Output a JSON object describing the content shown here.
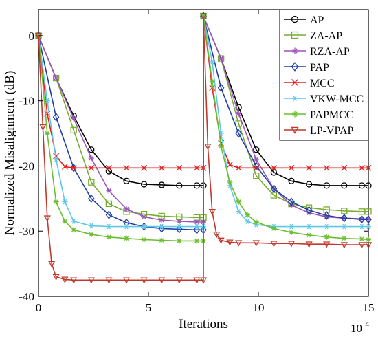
{
  "chart_data": {
    "type": "line",
    "title": "",
    "xlabel": "Iterations",
    "ylabel": "Normalized Misalignment (dB)",
    "x_exponent_label": "10",
    "x_exponent_power": "4",
    "xlim": [
      0,
      15
    ],
    "ylim": [
      -40,
      4
    ],
    "xticks": [
      0,
      5,
      10,
      15
    ],
    "xtick_labels": [
      "0",
      "5",
      "10",
      "15"
    ],
    "yticks": [
      0,
      -10,
      -20,
      -30,
      -40
    ],
    "ytick_labels": [
      "0",
      "-10",
      "-20",
      "-30",
      "-40"
    ],
    "grid": false,
    "legend_position": "top-right",
    "x_units_note": "",
    "series": [
      {
        "name": "AP",
        "color": "#000000",
        "marker": "circle",
        "x": [
          0,
          0.8,
          1.6,
          2.4,
          3.2,
          4.0,
          4.8,
          5.6,
          6.4,
          7.2,
          7.5,
          7.5,
          8.3,
          9.1,
          9.9,
          10.7,
          11.5,
          12.3,
          13.1,
          13.9,
          14.7,
          15
        ],
        "y": [
          0,
          -6.5,
          -12.3,
          -17.5,
          -20.8,
          -22.3,
          -22.8,
          -22.9,
          -23.0,
          -23.0,
          -23.0,
          3,
          -3.5,
          -11.0,
          -17.5,
          -21.0,
          -22.3,
          -22.8,
          -23.0,
          -23.0,
          -23.0,
          -23.0
        ]
      },
      {
        "name": "ZA-AP",
        "color": "#77ac30",
        "marker": "square",
        "x": [
          0,
          0.8,
          1.6,
          2.4,
          3.2,
          4.0,
          4.8,
          5.6,
          6.4,
          7.2,
          7.5,
          7.5,
          8.3,
          9.1,
          9.9,
          10.7,
          11.5,
          12.3,
          13.1,
          13.9,
          14.7,
          15
        ],
        "y": [
          0,
          -6.5,
          -14.5,
          -22.5,
          -25.8,
          -27.0,
          -27.4,
          -27.7,
          -27.8,
          -27.9,
          -27.9,
          3,
          -3.5,
          -13.5,
          -21.5,
          -24.5,
          -25.8,
          -26.4,
          -26.7,
          -26.9,
          -27.0,
          -27.0
        ]
      },
      {
        "name": "RZA-AP",
        "color": "#9b55b8",
        "marker": "star",
        "x": [
          0,
          0.8,
          1.6,
          2.4,
          3.2,
          4.0,
          4.8,
          5.6,
          6.4,
          7.2,
          7.5,
          7.5,
          8.3,
          9.1,
          9.9,
          10.7,
          11.5,
          12.3,
          13.1,
          13.9,
          14.7,
          15
        ],
        "y": [
          0,
          -6.5,
          -12.7,
          -18.8,
          -23.8,
          -26.6,
          -27.8,
          -28.3,
          -28.5,
          -28.6,
          -28.6,
          3,
          -3.5,
          -12.0,
          -19.0,
          -23.5,
          -26.0,
          -27.2,
          -27.8,
          -28.0,
          -28.1,
          -28.1
        ]
      },
      {
        "name": "PAP",
        "color": "#1f3fa6",
        "marker": "diamond",
        "x": [
          0,
          0.8,
          1.6,
          2.4,
          3.2,
          4.0,
          4.8,
          5.6,
          6.4,
          7.2,
          7.5,
          7.5,
          8.3,
          9.1,
          9.9,
          10.7,
          11.5,
          12.3,
          13.1,
          13.9,
          14.7,
          15
        ],
        "y": [
          0,
          -12.5,
          -20.3,
          -25.0,
          -27.5,
          -28.7,
          -29.3,
          -29.6,
          -29.7,
          -29.8,
          -29.8,
          3,
          -8.0,
          -15.0,
          -20.0,
          -23.5,
          -25.5,
          -26.8,
          -27.6,
          -28.0,
          -28.2,
          -28.2
        ]
      },
      {
        "name": "MCC",
        "color": "#e02020",
        "marker": "x",
        "x": [
          0,
          0.4,
          0.8,
          1.2,
          1.6,
          2.4,
          3.2,
          4.0,
          4.8,
          5.6,
          6.4,
          7.2,
          7.5,
          7.5,
          7.9,
          8.3,
          8.7,
          9.1,
          9.9,
          10.7,
          11.5,
          12.3,
          13.1,
          13.9,
          14.7,
          15
        ],
        "y": [
          0,
          -12,
          -18.5,
          -20.1,
          -20.3,
          -20.3,
          -20.3,
          -20.3,
          -20.3,
          -20.3,
          -20.3,
          -20.3,
          -20.3,
          3,
          -8,
          -16.5,
          -19.8,
          -20.3,
          -20.3,
          -20.3,
          -20.3,
          -20.3,
          -20.3,
          -20.3,
          -20.3,
          -20.3
        ]
      },
      {
        "name": "VKW-MCC",
        "color": "#5fc8e8",
        "marker": "star6",
        "x": [
          0,
          0.4,
          0.8,
          1.2,
          1.6,
          2.4,
          3.2,
          4.0,
          4.8,
          5.6,
          6.4,
          7.2,
          7.5,
          7.5,
          7.9,
          8.3,
          8.7,
          9.1,
          9.5,
          9.9,
          10.7,
          11.5,
          12.3,
          13.1,
          13.9,
          14.7,
          15
        ],
        "y": [
          0,
          -10,
          -19,
          -25.5,
          -28.5,
          -29.2,
          -29.3,
          -29.3,
          -29.3,
          -29.3,
          -29.3,
          -29.3,
          -29.3,
          3,
          -4,
          -15,
          -23,
          -27,
          -28.5,
          -29.0,
          -29.3,
          -29.3,
          -29.3,
          -29.3,
          -29.3,
          -29.3,
          -29.3
        ]
      },
      {
        "name": "PAPMCC",
        "color": "#6abf2f",
        "marker": "star",
        "x": [
          0,
          0.4,
          0.8,
          1.2,
          1.6,
          2.4,
          3.2,
          4.0,
          4.8,
          5.6,
          6.4,
          7.2,
          7.5,
          7.5,
          7.9,
          8.3,
          8.7,
          9.1,
          9.5,
          9.9,
          10.7,
          11.5,
          12.3,
          13.1,
          13.9,
          14.7,
          15
        ],
        "y": [
          0,
          -15,
          -25.5,
          -28.5,
          -29.8,
          -30.5,
          -30.9,
          -31.1,
          -31.3,
          -31.4,
          -31.5,
          -31.5,
          -31.5,
          3,
          -7,
          -17,
          -22.5,
          -25.5,
          -27.5,
          -28.6,
          -29.6,
          -30.2,
          -30.6,
          -30.9,
          -31.1,
          -31.2,
          -31.3
        ]
      },
      {
        "name": "LP-VPAP",
        "color": "#c0392b",
        "marker": "triangle-down",
        "x": [
          0,
          0.2,
          0.4,
          0.6,
          0.8,
          1.2,
          1.6,
          2.4,
          3.2,
          4.0,
          4.8,
          5.6,
          6.4,
          7.2,
          7.5,
          7.5,
          7.7,
          7.9,
          8.1,
          8.3,
          8.7,
          9.1,
          9.9,
          10.7,
          11.5,
          12.3,
          13.1,
          13.9,
          14.7,
          15
        ],
        "y": [
          0,
          -14,
          -28,
          -35,
          -37,
          -37.4,
          -37.5,
          -37.5,
          -37.5,
          -37.5,
          -37.5,
          -37.5,
          -37.5,
          -37.5,
          -37.5,
          3,
          -17,
          -27,
          -30.5,
          -31.4,
          -31.7,
          -31.8,
          -31.8,
          -31.9,
          -31.9,
          -32.0,
          -32.0,
          -32.1,
          -32.1,
          -32.1
        ]
      }
    ]
  }
}
